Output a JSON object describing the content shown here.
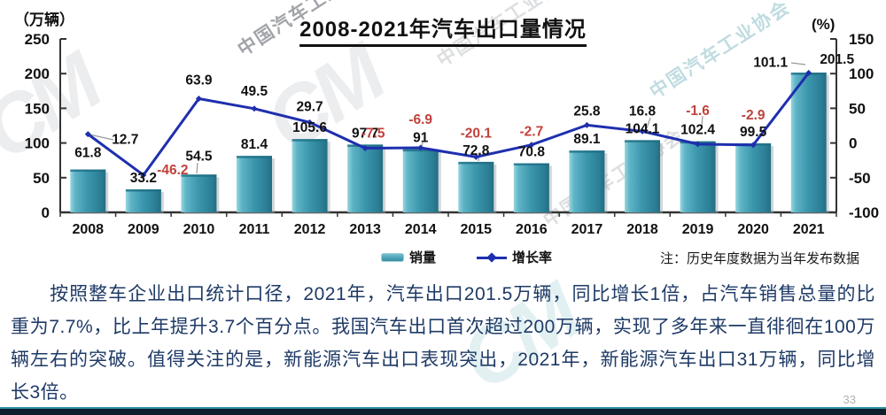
{
  "title": "2008-2021年汽车出口量情况",
  "left_axis_unit": "（万辆）",
  "right_axis_unit": "(%)",
  "legend": {
    "bar_label": "销量",
    "line_label": "增长率"
  },
  "note": "注：历史年度数据为当年发布数据",
  "body_text": "按照整车企业出口统计口径，2021年，汽车出口201.5万辆，同比增长1倍，占汽车销售总量的比重为7.7%，比上年提升3.7个百分点。我国汽车出口首次超过200万辆，实现了多年来一直徘徊在100万辆左右的突破。值得关注的是，新能源汽车出口表现突出，2021年，新能源汽车出口31万辆，同比增长3倍。",
  "page_number": "33",
  "watermark": {
    "logo": "CM",
    "text": "中国汽车工业协会"
  },
  "colors": {
    "bar_teal": "#3b97ad",
    "line_blue": "#1e2fae",
    "negative_red": "#c1403c",
    "label_black": "#111111",
    "body_navy": "#1e3a66"
  },
  "chart_data": {
    "type": "bar+line",
    "title": "2008-2021年汽车出口量情况",
    "categories": [
      "2008",
      "2009",
      "2010",
      "2011",
      "2012",
      "2013",
      "2014",
      "2015",
      "2016",
      "2017",
      "2018",
      "2019",
      "2020",
      "2021"
    ],
    "series": [
      {
        "name": "销量",
        "type": "bar",
        "axis": "left",
        "unit": "万辆",
        "values": [
          61.8,
          33.2,
          54.5,
          81.4,
          105.6,
          97.7,
          91,
          72.8,
          70.8,
          89.1,
          104.1,
          102.4,
          99.5,
          201.5
        ]
      },
      {
        "name": "增长率",
        "type": "line",
        "axis": "right",
        "unit": "%",
        "values": [
          12.7,
          -46.2,
          63.9,
          49.5,
          29.7,
          -7.5,
          -6.9,
          -20.1,
          -2.7,
          25.8,
          16.8,
          -1.6,
          -2.9,
          101.1
        ]
      }
    ],
    "left_axis": {
      "ticks": [
        250,
        200,
        150,
        100,
        50,
        0
      ],
      "range": [
        0,
        250
      ]
    },
    "right_axis": {
      "ticks": [
        150,
        100,
        50,
        0,
        -50,
        -100
      ],
      "range": [
        -100,
        150
      ]
    },
    "legend_position": "bottom",
    "grid": false
  }
}
